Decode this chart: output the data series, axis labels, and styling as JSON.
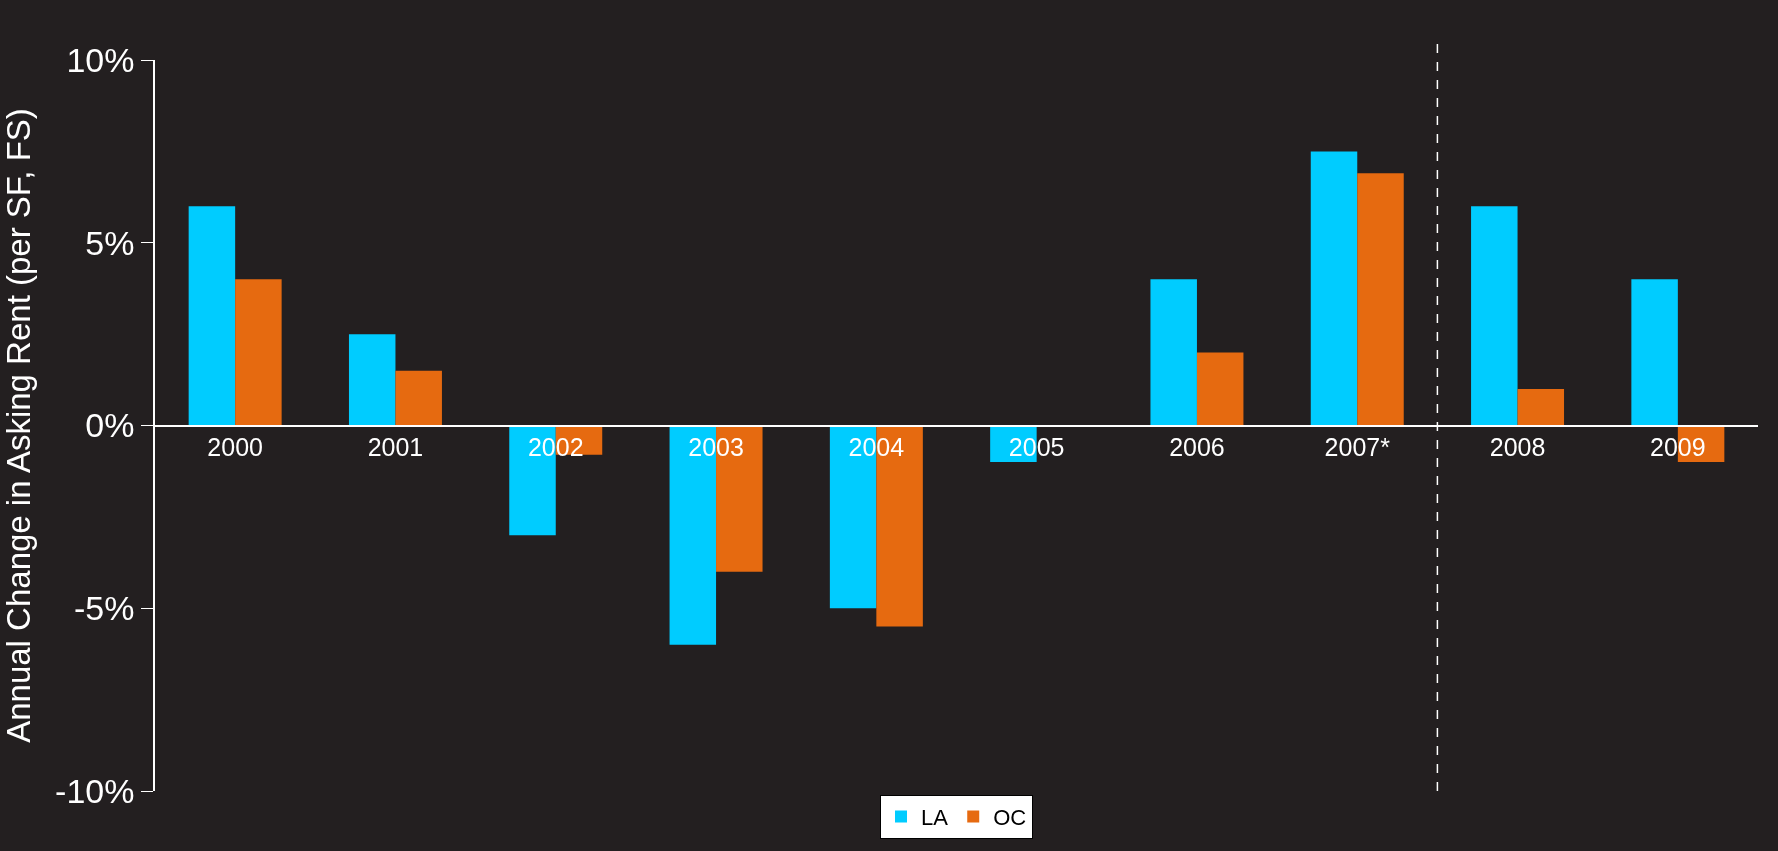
{
  "chart_data": {
    "type": "bar",
    "ylabel": "Annual Change in Asking Rent (per SF, FS)",
    "categories": [
      "2000",
      "2001",
      "2002",
      "2003",
      "2004",
      "2005",
      "2006",
      "2007*",
      "2008",
      "2009"
    ],
    "series": [
      {
        "name": "LA",
        "color": "#00ccff",
        "values": [
          6.0,
          2.5,
          -3.0,
          -6.0,
          -5.0,
          -1.0,
          4.0,
          7.5,
          6.0,
          4.0
        ]
      },
      {
        "name": "OC",
        "color": "#e66a10",
        "values": [
          4.0,
          1.5,
          -0.8,
          -4.0,
          -5.5,
          null,
          2.0,
          6.9,
          1.0,
          -1.0
        ]
      }
    ],
    "ylim": [
      -10,
      10
    ],
    "yticks": [
      {
        "value": -10,
        "label": "-10%"
      },
      {
        "value": -5,
        "label": "-5%"
      },
      {
        "value": 0,
        "label": "0%"
      },
      {
        "value": 5,
        "label": "5%"
      },
      {
        "value": 10,
        "label": "10%"
      }
    ],
    "grid": false,
    "legend": "bottom"
  }
}
